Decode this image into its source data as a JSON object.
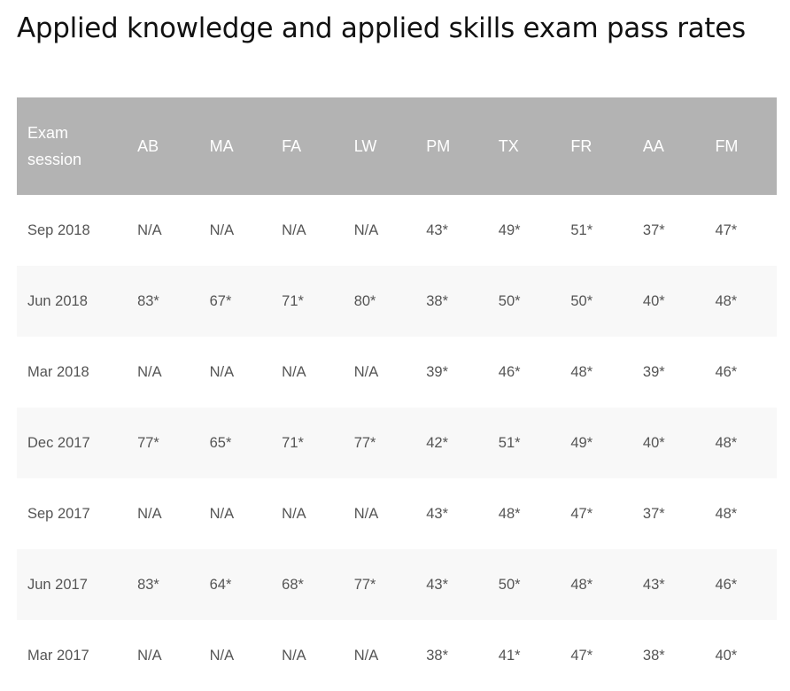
{
  "title": "Applied knowledge and applied skills exam pass rates",
  "table": {
    "headers": [
      "Exam\nsession",
      "AB",
      "MA",
      "FA",
      "LW",
      "PM",
      "TX",
      "FR",
      "AA",
      "FM"
    ],
    "rows": [
      [
        "Sep 2018",
        "N/A",
        "N/A",
        "N/A",
        "N/A",
        "43*",
        "49*",
        "51*",
        "37*",
        "47*"
      ],
      [
        "Jun 2018",
        "83*",
        "67*",
        "71*",
        "80*",
        "38*",
        "50*",
        "50*",
        "40*",
        "48*"
      ],
      [
        "Mar 2018",
        "N/A",
        "N/A",
        "N/A",
        "N/A",
        "39*",
        "46*",
        "48*",
        "39*",
        "46*"
      ],
      [
        "Dec 2017",
        "77*",
        "65*",
        "71*",
        "77*",
        "42*",
        "51*",
        "49*",
        "40*",
        "48*"
      ],
      [
        "Sep 2017",
        "N/A",
        "N/A",
        "N/A",
        "N/A",
        "43*",
        "48*",
        "47*",
        "37*",
        "48*"
      ],
      [
        "Jun 2017",
        "83*",
        "64*",
        "68*",
        "77*",
        "43*",
        "50*",
        "48*",
        "43*",
        "46*"
      ],
      [
        "Mar 2017",
        "N/A",
        "N/A",
        "N/A",
        "N/A",
        "38*",
        "41*",
        "47*",
        "38*",
        "40*"
      ]
    ]
  }
}
